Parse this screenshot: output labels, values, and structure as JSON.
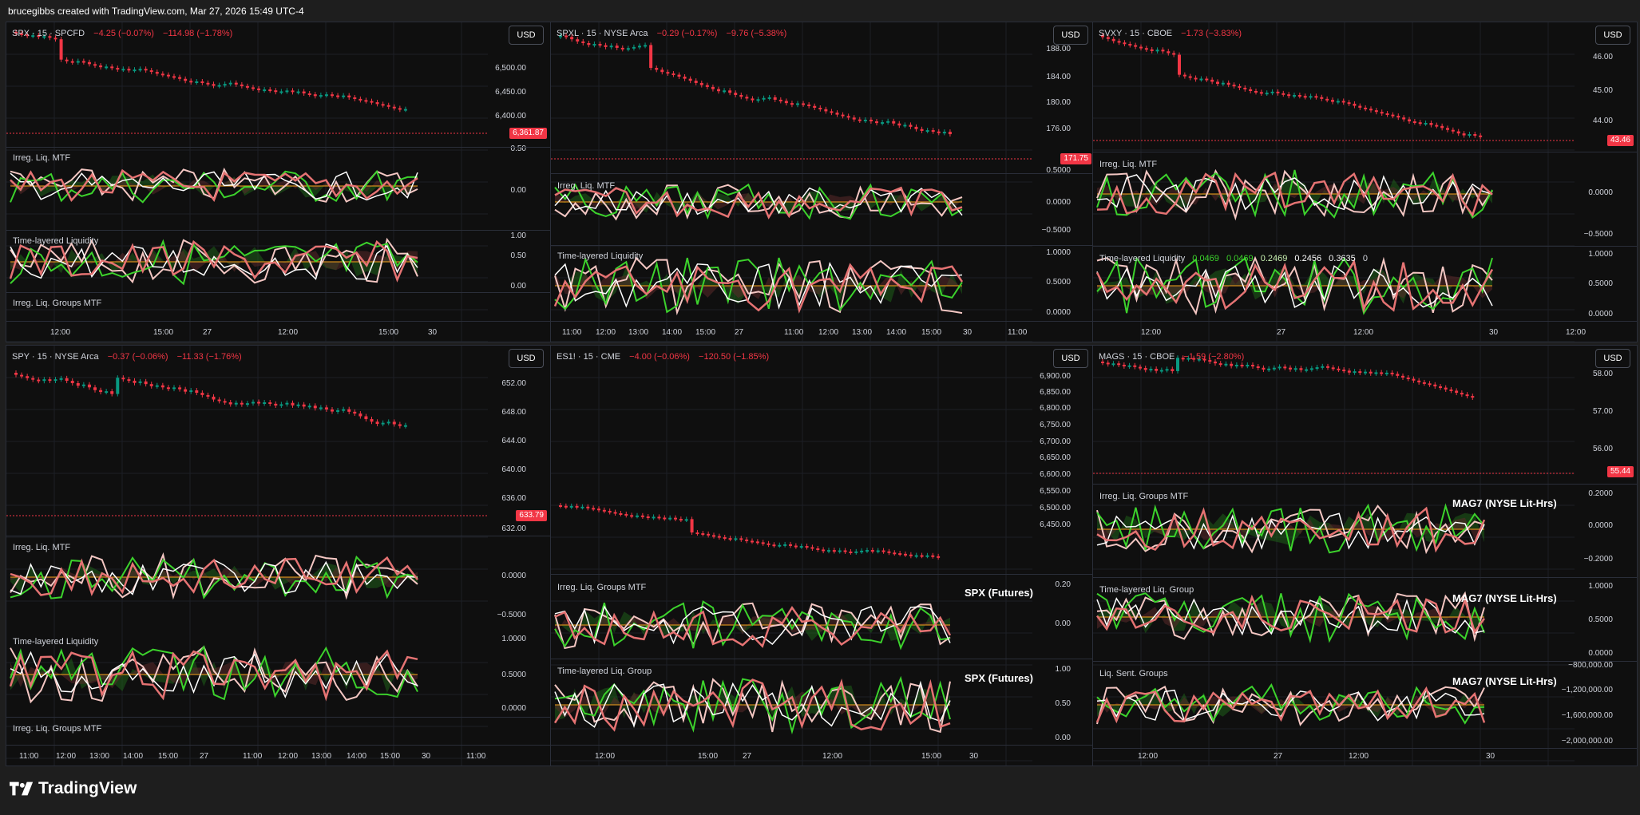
{
  "header": {
    "text": "brucegibbs created with TradingView.com, Mar 27, 2026 15:49 UTC-4"
  },
  "footer": {
    "brand": "TradingView"
  },
  "colors": {
    "up": "#089981",
    "down": "#f23645",
    "bg": "#0f0f0f",
    "orange": "#f7a21b",
    "green": "#3cd22c"
  },
  "charts": [
    {
      "id": "spx",
      "legend": {
        "symbol": "SPX · 15 · SPCFD",
        "chg1": "−4.25 (−0.07%)",
        "chg2": "−114.98 (−1.78%)"
      },
      "currency": "USD",
      "price_tag": "6,361.87",
      "price_axis": [
        "6,500.00",
        "6,450.00",
        "6,400.00",
        "0.50"
      ],
      "panes": [
        {
          "title": "Irreg. Liq. MTF",
          "axis": [
            "0.00"
          ]
        },
        {
          "title": "Time-layered Liquidity",
          "axis": [
            "1.00",
            "0.50",
            "0.00"
          ]
        },
        {
          "title": "Irreg. Liq. Groups MTF",
          "axis": []
        }
      ],
      "x_labels": [
        "12:00",
        "15:00",
        "27",
        "12:00",
        "15:00",
        "30"
      ]
    },
    {
      "id": "spxl",
      "legend": {
        "symbol": "SPXL · 15 · NYSE Arca",
        "chg1": "−0.29 (−0.17%)",
        "chg2": "−9.76 (−5.38%)"
      },
      "currency": "USD",
      "price_tag": "171.75",
      "price_axis": [
        "188.00",
        "184.00",
        "180.00",
        "176.00",
        "0.5000"
      ],
      "panes": [
        {
          "title": "Irreg. Liq. MTF",
          "axis": [
            "0.0000",
            "−0.5000"
          ]
        },
        {
          "title": "Time-layered Liquidity",
          "axis": [
            "1.0000",
            "0.5000",
            "0.0000"
          ]
        }
      ],
      "x_labels": [
        "11:00",
        "12:00",
        "13:00",
        "14:00",
        "15:00",
        "27",
        "11:00",
        "12:00",
        "13:00",
        "14:00",
        "15:00",
        "30",
        "11:00"
      ]
    },
    {
      "id": "svxy",
      "legend": {
        "symbol": "SVXY · 15 · CBOE",
        "chg1": "−1.73 (−3.83%)",
        "chg2": ""
      },
      "currency": "USD",
      "price_tag": "43.46",
      "price_axis": [
        "46.00",
        "45.00",
        "44.00"
      ],
      "panes": [
        {
          "title": "Irreg. Liq. MTF",
          "axis": [
            "0.0000",
            "−0.5000"
          ]
        },
        {
          "title": "Time-layered Liquidity",
          "values": [
            "0.0469",
            "0.0469",
            "0.2469",
            "0.2456",
            "0.3635",
            "0"
          ],
          "axis": [
            "1.0000",
            "0.5000",
            "0.0000"
          ]
        }
      ],
      "x_labels": [
        "12:00",
        "27",
        "12:00",
        "30",
        "12:00"
      ]
    },
    {
      "id": "spy",
      "legend": {
        "symbol": "SPY · 15 · NYSE Arca",
        "chg1": "−0.37 (−0.06%)",
        "chg2": "−11.33 (−1.76%)"
      },
      "currency": "USD",
      "price_tag": "633.79",
      "price_axis": [
        "652.00",
        "648.00",
        "644.00",
        "640.00",
        "636.00",
        "632.00"
      ],
      "panes": [
        {
          "title": "Irreg. Liq. MTF",
          "axis": [
            "0.0000",
            "−0.5000"
          ]
        },
        {
          "title": "Time-layered Liquidity",
          "axis": [
            "1.0000",
            "0.5000",
            "0.0000"
          ]
        },
        {
          "title": "Irreg. Liq. Groups MTF",
          "axis": []
        }
      ],
      "x_labels": [
        "11:00",
        "12:00",
        "13:00",
        "14:00",
        "15:00",
        "27",
        "11:00",
        "12:00",
        "13:00",
        "14:00",
        "15:00",
        "30",
        "11:00"
      ]
    },
    {
      "id": "es",
      "legend": {
        "symbol": "ES1! · 15 · CME",
        "chg1": "−4.00 (−0.06%)",
        "chg2": "−120.50 (−1.85%)"
      },
      "currency": "USD",
      "price_tag": "",
      "price_axis": [
        "6,900.00",
        "6,850.00",
        "6,800.00",
        "6,750.00",
        "6,700.00",
        "6,650.00",
        "6,600.00",
        "6,550.00",
        "6,500.00",
        "6,450.00"
      ],
      "panes": [
        {
          "title": "Irreg. Liq. Groups MTF",
          "big": "SPX (Futures)",
          "axis": [
            "0.20",
            "0.00"
          ]
        },
        {
          "title": "Time-layered Liq. Group",
          "big": "SPX (Futures)",
          "axis": [
            "1.00",
            "0.50",
            "0.00"
          ]
        }
      ],
      "x_labels": [
        "12:00",
        "15:00",
        "27",
        "12:00",
        "15:00",
        "30"
      ]
    },
    {
      "id": "mags",
      "legend": {
        "symbol": "MAGS · 15 · CBOE",
        "chg1": "−1.59 (−2.80%)",
        "chg2": ""
      },
      "currency": "USD",
      "price_tag": "55.44",
      "price_axis": [
        "58.00",
        "57.00",
        "56.00"
      ],
      "panes": [
        {
          "title": "Irreg. Liq. Groups MTF",
          "big": "MAG7 (NYSE Lit-Hrs)",
          "axis": [
            "0.2000",
            "0.0000",
            "−0.2000"
          ]
        },
        {
          "title": "Time-layered Liq. Group",
          "big": "MAG7 (NYSE Lit-Hrs)",
          "axis": [
            "1.0000",
            "0.5000",
            "0.0000"
          ]
        },
        {
          "title": "Liq. Sent. Groups",
          "big": "MAG7 (NYSE Lit-Hrs)",
          "axis": [
            "−800,000.00",
            "−1,200,000.00",
            "−1,600,000.00",
            "−2,000,000.00"
          ]
        }
      ],
      "x_labels": [
        "12:00",
        "27",
        "12:00",
        "30"
      ]
    }
  ]
}
